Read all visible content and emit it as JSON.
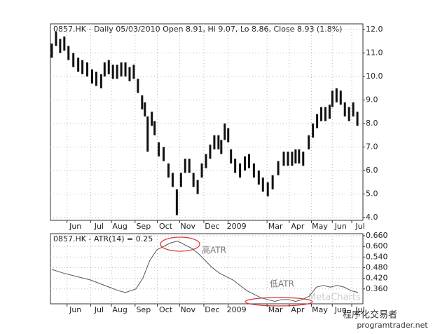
{
  "chart_data": [
    {
      "type": "ohlc",
      "title": "0857.HK - Daily 05/03/2010 Open 8.91, Hi 9.07, Lo 8.86, Close 8.93 (1.8%)",
      "color": "#111111",
      "x": [
        2,
        8,
        14,
        20,
        26,
        33,
        40,
        46,
        53,
        60,
        66,
        73,
        78,
        84,
        90,
        96,
        102,
        108,
        114,
        120,
        126,
        132,
        136,
        140,
        146,
        150,
        156,
        163,
        170,
        176,
        182,
        188,
        194,
        200,
        206,
        212,
        218,
        224,
        230,
        236,
        242,
        246,
        251,
        256,
        260,
        266,
        273,
        280,
        286,
        293,
        300,
        306,
        313,
        320,
        328,
        336,
        342,
        348,
        353,
        358,
        364,
        372,
        378,
        384,
        390,
        396,
        402,
        406,
        412,
        418,
        424,
        430,
        436,
        442
      ],
      "high": [
        11.4,
        11.9,
        11.6,
        11.7,
        11.3,
        11.0,
        10.8,
        10.7,
        10.6,
        10.3,
        10.2,
        10.1,
        10.6,
        10.7,
        10.5,
        10.5,
        10.6,
        10.6,
        10.4,
        10.5,
        9.9,
        9.2,
        8.9,
        8.3,
        8.5,
        8.1,
        7.2,
        7.0,
        6.3,
        5.9,
        5.2,
        5.9,
        6.5,
        6.5,
        5.9,
        5.6,
        6.3,
        6.7,
        7.1,
        7.5,
        7.5,
        7.3,
        8.0,
        7.8,
        6.9,
        6.5,
        6.3,
        6.6,
        6.7,
        6.3,
        6.0,
        5.7,
        5.5,
        5.8,
        6.4,
        6.8,
        6.8,
        6.8,
        6.9,
        6.9,
        6.8,
        7.5,
        8.0,
        8.4,
        8.7,
        8.7,
        8.8,
        9.4,
        9.5,
        9.4,
        8.9,
        8.7,
        8.9,
        8.5
      ],
      "low": [
        10.8,
        11.3,
        11.0,
        11.1,
        10.7,
        10.4,
        10.2,
        10.1,
        10.0,
        9.7,
        9.6,
        9.5,
        10.0,
        10.1,
        9.9,
        9.9,
        10.0,
        10.0,
        9.8,
        9.9,
        9.3,
        8.6,
        8.3,
        6.8,
        7.9,
        7.5,
        6.6,
        6.4,
        5.7,
        5.3,
        4.1,
        5.3,
        5.9,
        5.9,
        5.3,
        5.0,
        5.7,
        6.1,
        6.5,
        6.9,
        6.9,
        6.7,
        7.3,
        7.2,
        6.3,
        5.9,
        5.7,
        6.0,
        6.1,
        5.7,
        5.4,
        5.1,
        4.9,
        5.2,
        5.8,
        6.2,
        6.2,
        6.2,
        6.3,
        6.3,
        6.2,
        6.9,
        7.4,
        7.8,
        8.1,
        8.1,
        8.2,
        8.7,
        8.9,
        8.8,
        8.3,
        8.1,
        8.3,
        7.9
      ],
      "xlim": [
        0,
        450
      ],
      "xticks": [
        {
          "value": 36,
          "label": "Jun"
        },
        {
          "value": 70,
          "label": "Jul"
        },
        {
          "value": 100,
          "label": "Aug"
        },
        {
          "value": 134,
          "label": "Sep"
        },
        {
          "value": 166,
          "label": "Oct"
        },
        {
          "value": 198,
          "label": "Nov"
        },
        {
          "value": 233,
          "label": "Dec"
        },
        {
          "value": 268,
          "label": "2009"
        },
        {
          "value": 324,
          "label": "Mar"
        },
        {
          "value": 356,
          "label": "Apr"
        },
        {
          "value": 388,
          "label": "May"
        },
        {
          "value": 418,
          "label": "Jun"
        },
        {
          "value": 446,
          "label": "Jul"
        }
      ],
      "ylim": [
        3.88,
        12.24
      ],
      "yticks": [
        {
          "value": 4,
          "label": "4.0"
        },
        {
          "value": 5,
          "label": "5.0"
        },
        {
          "value": 6,
          "label": "6.0"
        },
        {
          "value": 7,
          "label": "7.0"
        },
        {
          "value": 8,
          "label": "8.0"
        },
        {
          "value": 9,
          "label": "9.0"
        },
        {
          "value": 10,
          "label": "10.0"
        },
        {
          "value": 11,
          "label": "11.0"
        },
        {
          "value": 12,
          "label": "12.0"
        }
      ],
      "grid": true
    },
    {
      "type": "line",
      "title": "0857.HK - ATR(14) = 0.25",
      "color": "#555555",
      "x": [
        2,
        18,
        38,
        58,
        78,
        98,
        108,
        123,
        133,
        143,
        153,
        163,
        173,
        183,
        193,
        203,
        213,
        223,
        233,
        243,
        253,
        263,
        273,
        283,
        293,
        303,
        313,
        323,
        333,
        343,
        353,
        363,
        373,
        383,
        393,
        403,
        413,
        423,
        433,
        443
      ],
      "values": [
        0.47,
        0.45,
        0.43,
        0.41,
        0.38,
        0.35,
        0.34,
        0.36,
        0.42,
        0.52,
        0.58,
        0.6,
        0.62,
        0.63,
        0.61,
        0.59,
        0.56,
        0.52,
        0.48,
        0.45,
        0.43,
        0.41,
        0.38,
        0.35,
        0.33,
        0.31,
        0.3,
        0.29,
        0.3,
        0.3,
        0.29,
        0.3,
        0.32,
        0.37,
        0.38,
        0.37,
        0.38,
        0.37,
        0.35,
        0.34
      ],
      "xlim": [
        0,
        450
      ],
      "xticks": [
        {
          "value": 36,
          "label": "Jun"
        },
        {
          "value": 70,
          "label": "Jul"
        },
        {
          "value": 100,
          "label": "Aug"
        },
        {
          "value": 134,
          "label": "Sep"
        },
        {
          "value": 166,
          "label": "Oct"
        },
        {
          "value": 198,
          "label": "Nov"
        },
        {
          "value": 233,
          "label": "Dec"
        },
        {
          "value": 268,
          "label": "2009"
        },
        {
          "value": 324,
          "label": "Mar"
        },
        {
          "value": 356,
          "label": "Apr"
        },
        {
          "value": 388,
          "label": "May"
        },
        {
          "value": 418,
          "label": "Jun"
        },
        {
          "value": 446,
          "label": "Jul"
        }
      ],
      "ylim": [
        0.276,
        0.672
      ],
      "yticks": [
        {
          "value": 0.36,
          "label": "0.360"
        },
        {
          "value": 0.42,
          "label": "0.420"
        },
        {
          "value": 0.48,
          "label": "0.480"
        },
        {
          "value": 0.54,
          "label": "0.540"
        },
        {
          "value": 0.6,
          "label": "0.600"
        },
        {
          "value": 0.66,
          "label": "0.660"
        }
      ],
      "grid": true,
      "annotations": [
        "高ATR",
        "低ATR"
      ]
    }
  ],
  "watermarks": [
    "MetaCharts",
    "程序化交易者",
    "programtrader.net"
  ]
}
